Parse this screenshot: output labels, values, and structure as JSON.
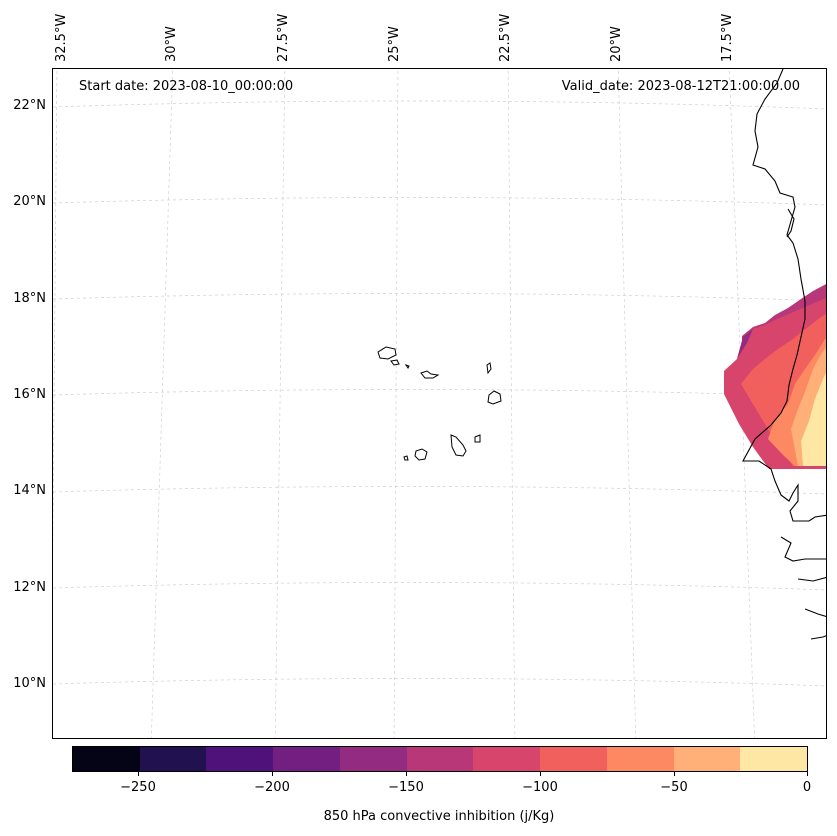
{
  "map": {
    "start_label": "Start date: 2023-08-10_00:00:00",
    "valid_label": "Valid_date: 2023-08-12T21:00:00.00",
    "lon_labels": [
      "32.5°W",
      "30°W",
      "27.5°W",
      "25°W",
      "22.5°W",
      "20°W",
      "17.5°W"
    ],
    "lat_labels": [
      "22°N",
      "20°N",
      "18°N",
      "16°N",
      "14°N",
      "12°N",
      "10°N"
    ]
  },
  "colorbar": {
    "title": "850 hPa convective inhibition (j/Kg)",
    "tick_labels": [
      "−250",
      "−200",
      "−150",
      "−100",
      "−50",
      "0"
    ],
    "colors": [
      "#050416",
      "#21114e",
      "#4f127b",
      "#721f81",
      "#932b80",
      "#b73779",
      "#d8456c",
      "#f1605d",
      "#fc8961",
      "#feb078",
      "#fee7a5"
    ]
  }
}
